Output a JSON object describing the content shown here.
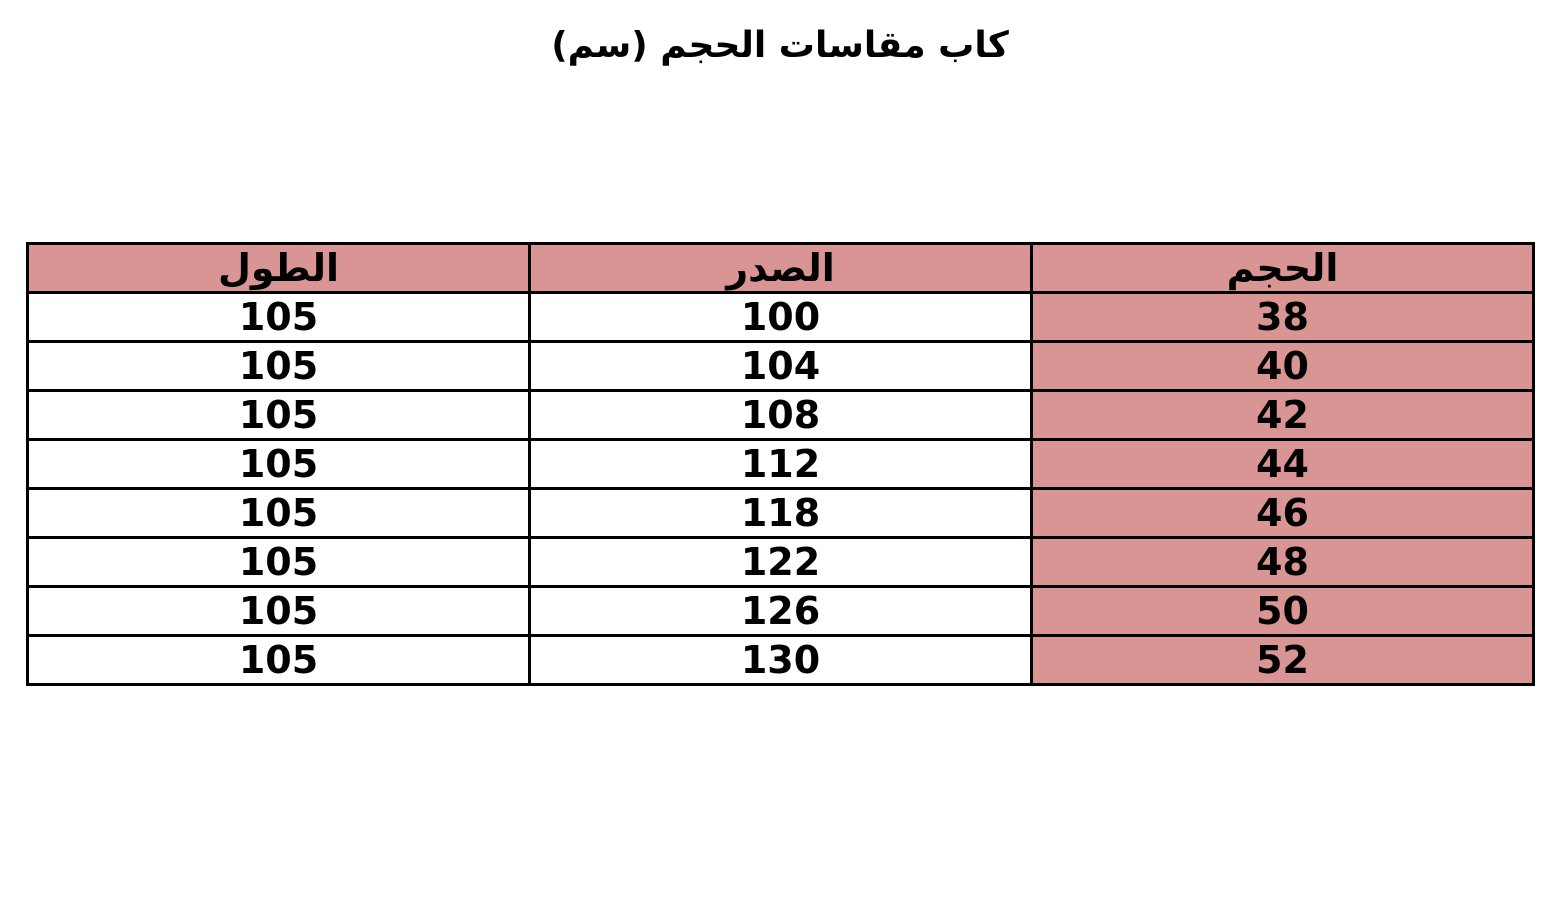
{
  "title": "كاب مقاسات الحجم (سم)",
  "colors": {
    "accent": "#d99594",
    "border": "#000000"
  },
  "table": {
    "headers": [
      "الحجم",
      "الصدر",
      "الطول"
    ],
    "rows": [
      [
        "38",
        "100",
        "105"
      ],
      [
        "40",
        "104",
        "105"
      ],
      [
        "42",
        "108",
        "105"
      ],
      [
        "44",
        "112",
        "105"
      ],
      [
        "46",
        "118",
        "105"
      ],
      [
        "48",
        "122",
        "105"
      ],
      [
        "50",
        "126",
        "105"
      ],
      [
        "52",
        "130",
        "105"
      ]
    ]
  }
}
